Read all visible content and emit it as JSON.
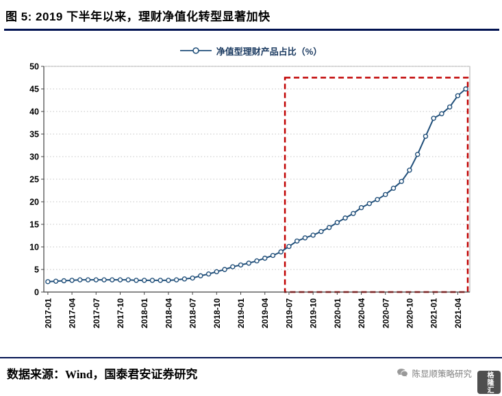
{
  "header": {
    "title": "图 5:  2019 下半年以来，理财净值化转型显著加快"
  },
  "legend": {
    "label": "净值型理财产品占比（%）"
  },
  "colors": {
    "rule": "#001150",
    "line": "#1F4E79",
    "legend_text": "#17375E",
    "highlight": "#C00000",
    "grid": "#C3C3C3",
    "axis": "#404040",
    "watermark_text": "#808080",
    "logo_bg": "#4F4F4F"
  },
  "chart_data": {
    "type": "line",
    "title": "净值型理财产品占比（%）",
    "ylim": [
      0,
      50
    ],
    "ytick_step": 5,
    "grid": "horizontal-dotted",
    "legend_position": "top-center",
    "x": [
      "2017-01",
      "2017-02",
      "2017-03",
      "2017-04",
      "2017-05",
      "2017-06",
      "2017-07",
      "2017-08",
      "2017-09",
      "2017-10",
      "2017-11",
      "2017-12",
      "2018-01",
      "2018-02",
      "2018-03",
      "2018-04",
      "2018-05",
      "2018-06",
      "2018-07",
      "2018-08",
      "2018-09",
      "2018-10",
      "2018-11",
      "2018-12",
      "2019-01",
      "2019-02",
      "2019-03",
      "2019-04",
      "2019-05",
      "2019-06",
      "2019-07",
      "2019-08",
      "2019-09",
      "2019-10",
      "2019-11",
      "2019-12",
      "2020-01",
      "2020-02",
      "2020-03",
      "2020-04",
      "2020-05",
      "2020-06",
      "2020-07",
      "2020-08",
      "2020-09",
      "2020-10",
      "2020-11",
      "2020-12",
      "2021-01",
      "2021-02",
      "2021-03",
      "2021-04",
      "2021-05"
    ],
    "values": [
      2.3,
      2.4,
      2.5,
      2.6,
      2.7,
      2.7,
      2.7,
      2.7,
      2.7,
      2.7,
      2.7,
      2.6,
      2.6,
      2.6,
      2.6,
      2.6,
      2.7,
      2.9,
      3.1,
      3.6,
      4.0,
      4.5,
      5.0,
      5.6,
      6.0,
      6.4,
      6.9,
      7.5,
      8.1,
      8.9,
      10.1,
      11.3,
      12.0,
      12.6,
      13.4,
      14.3,
      15.4,
      16.4,
      17.4,
      18.7,
      19.6,
      20.5,
      21.6,
      23.0,
      24.5,
      27.0,
      30.5,
      34.5,
      38.5,
      39.5,
      41.0,
      43.5,
      45.0
    ],
    "x_tick_labels": [
      "2017-01",
      "2017-04",
      "2017-07",
      "2017-10",
      "2018-01",
      "2018-04",
      "2018-07",
      "2018-10",
      "2019-01",
      "2019-04",
      "2019-07",
      "2019-10",
      "2020-01",
      "2020-04",
      "2020-07",
      "2020-10",
      "2021-01",
      "2021-04"
    ],
    "highlight_box": {
      "x_start": "2019-07",
      "y_bottom": 0,
      "y_top": 47.5
    }
  },
  "footer": {
    "source": "数据来源：Wind，国泰君安证券研究"
  },
  "watermark": {
    "account": "陈显顺策略研究",
    "logo_text": "格隆汇"
  }
}
